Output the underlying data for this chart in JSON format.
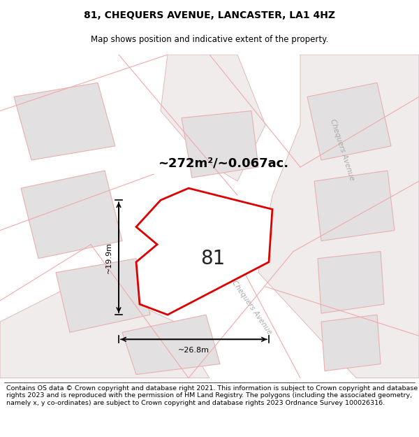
{
  "title": "81, CHEQUERS AVENUE, LANCASTER, LA1 4HZ",
  "subtitle": "Map shows position and indicative extent of the property.",
  "area_text": "~272m²/~0.067ac.",
  "plot_number": "81",
  "dim_width": "~26.8m",
  "dim_height": "~19.9m",
  "footer": "Contains OS data © Crown copyright and database right 2021. This information is subject to Crown copyright and database rights 2023 and is reproduced with the permission of HM Land Registry. The polygons (including the associated geometry, namely x, y co-ordinates) are subject to Crown copyright and database rights 2023 Ordnance Survey 100026316.",
  "map_bg": "#f7f5f5",
  "plot_color": "#dd0000",
  "block_face": "#e2e0e0",
  "block_edge": "#e8b0b0",
  "road_face": "#f0ecec",
  "road_edge": "#dbb0b0",
  "title_fontsize": 10,
  "subtitle_fontsize": 8.5,
  "footer_fontsize": 6.8,
  "street_color": "#aaaaaa"
}
